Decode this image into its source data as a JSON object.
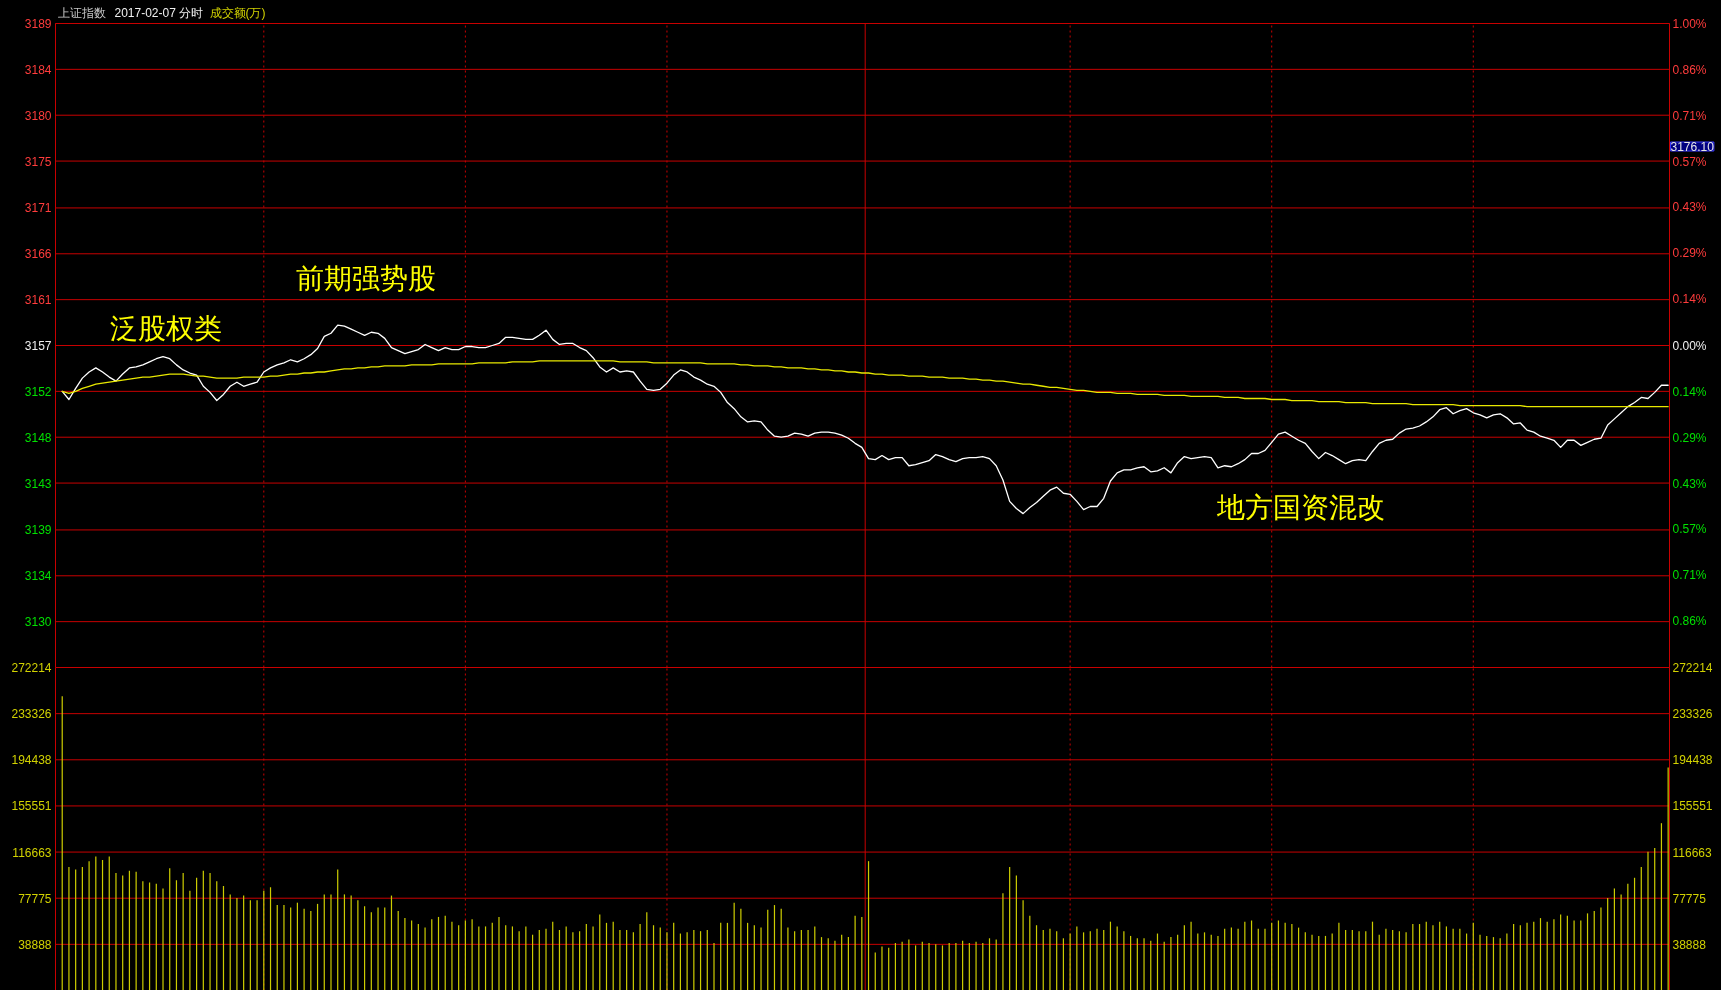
{
  "chart_data": [
    {
      "type": "line",
      "title": "上证指数",
      "subtitle": "2017-02-07 分时",
      "categories": [
        null,
        null,
        null,
        null,
        null,
        null,
        null,
        null,
        null,
        null,
        null,
        null,
        null,
        null,
        null,
        null,
        null,
        null,
        null,
        null,
        null,
        null,
        null,
        null,
        null,
        null,
        null,
        null,
        null,
        null,
        null,
        null,
        null,
        null,
        null,
        null,
        null,
        null,
        null,
        null,
        null,
        null,
        null,
        null,
        null,
        null,
        null,
        null,
        null,
        null,
        null,
        null,
        null,
        null,
        null,
        null,
        null,
        null,
        null,
        null,
        null,
        null,
        null,
        null,
        null,
        null,
        null,
        null,
        null,
        null,
        null,
        null,
        null,
        null,
        null,
        null,
        null,
        null,
        null,
        null,
        null,
        null,
        null,
        null,
        null,
        null,
        null,
        null,
        null,
        null,
        null,
        null,
        null,
        null,
        null,
        null,
        null,
        null,
        null,
        null,
        null,
        null,
        null,
        null,
        null,
        null,
        null,
        null,
        null,
        null,
        null,
        null,
        null,
        null,
        null,
        null,
        null,
        null,
        null,
        null,
        null,
        null,
        null,
        null,
        null,
        null,
        null,
        null,
        null,
        null,
        null,
        null,
        null,
        null,
        null,
        null,
        null,
        null,
        null,
        null,
        null,
        null,
        null,
        null,
        null,
        null,
        null,
        null,
        null,
        null,
        null,
        null,
        null,
        null,
        null,
        null,
        null,
        null,
        null,
        null,
        null,
        null,
        null,
        null,
        null,
        null,
        null,
        null,
        null,
        null,
        null,
        null,
        null,
        null,
        null,
        null,
        null,
        null,
        null,
        null,
        null,
        null,
        null,
        null,
        null,
        null,
        null,
        null,
        null,
        null,
        null,
        null,
        null,
        null,
        null,
        null,
        null,
        null,
        null,
        null,
        null,
        null,
        null,
        null,
        null,
        null,
        null,
        null,
        null,
        null,
        null,
        null,
        null,
        null,
        null,
        null,
        null,
        null,
        null,
        null,
        null,
        null,
        null,
        null,
        null,
        null,
        null,
        null,
        null,
        null,
        null,
        null,
        null,
        null,
        null,
        null,
        null,
        null,
        null,
        null
      ],
      "series": [
        {
          "color": "#ffffff",
          "values": [
            3152.5,
            3151.7,
            3152.8,
            3153.8,
            3154.4,
            3154.8,
            3154.4,
            3153.9,
            3153.5,
            3154.2,
            3154.8,
            3154.9,
            3155.1,
            3155.4,
            3155.7,
            3155.9,
            3155.7,
            3155.1,
            3154.6,
            3154.3,
            3154.1,
            3153.0,
            3152.4,
            3151.6,
            3152.2,
            3153.0,
            3153.4,
            3153.0,
            3153.2,
            3153.4,
            3154.4,
            3154.8,
            3155.1,
            3155.3,
            3155.6,
            3155.4,
            3155.7,
            3156.1,
            3156.7,
            3157.9,
            3158.2,
            3159.0,
            3158.9,
            3158.6,
            3158.3,
            3158.0,
            3158.3,
            3158.2,
            3157.7,
            3156.8,
            3156.5,
            3156.2,
            3156.4,
            3156.6,
            3157.1,
            3156.8,
            3156.5,
            3156.8,
            3156.6,
            3156.6,
            3156.9,
            3156.9,
            3156.8,
            3156.8,
            3157.0,
            3157.2,
            3157.8,
            3157.8,
            3157.7,
            3157.6,
            3157.6,
            3158.0,
            3158.5,
            3157.6,
            3157.1,
            3157.2,
            3157.2,
            3156.8,
            3156.5,
            3155.8,
            3154.9,
            3154.4,
            3154.8,
            3154.4,
            3154.5,
            3154.4,
            3153.5,
            3152.7,
            3152.6,
            3152.7,
            3153.3,
            3154.1,
            3154.6,
            3154.4,
            3153.9,
            3153.6,
            3153.2,
            3153.0,
            3152.4,
            3151.4,
            3150.8,
            3150.0,
            3149.5,
            3149.6,
            3149.5,
            3148.7,
            3148.1,
            3148.0,
            3148.1,
            3148.4,
            3148.3,
            3148.1,
            3148.4,
            3148.5,
            3148.5,
            3148.4,
            3148.2,
            3147.9,
            3147.4,
            3147.0,
            3145.9,
            3145.8,
            3146.2,
            3145.8,
            3146.0,
            3146.0,
            3145.2,
            3145.3,
            3145.5,
            3145.7,
            3146.3,
            3146.1,
            3145.8,
            3145.6,
            3145.9,
            3146.0,
            3146.0,
            3146.1,
            3145.9,
            3145.2,
            3143.8,
            3141.7,
            3141.0,
            3140.5,
            3141.1,
            3141.6,
            3142.2,
            3142.8,
            3143.1,
            3142.5,
            3142.4,
            3141.7,
            3140.9,
            3141.2,
            3141.2,
            3142.0,
            3143.7,
            3144.5,
            3144.8,
            3144.8,
            3145.0,
            3145.1,
            3144.6,
            3144.7,
            3145.0,
            3144.5,
            3145.5,
            3146.1,
            3145.9,
            3146.0,
            3146.1,
            3146.0,
            3145.0,
            3145.2,
            3145.1,
            3145.4,
            3145.8,
            3146.4,
            3146.4,
            3146.7,
            3147.5,
            3148.3,
            3148.5,
            3148.1,
            3147.7,
            3147.4,
            3146.6,
            3145.9,
            3146.5,
            3146.2,
            3145.8,
            3145.4,
            3145.7,
            3145.8,
            3145.7,
            3146.6,
            3147.4,
            3147.7,
            3147.8,
            3148.4,
            3148.8,
            3148.9,
            3149.1,
            3149.5,
            3150.0,
            3150.7,
            3150.9,
            3150.3,
            3150.6,
            3150.8,
            3150.4,
            3150.2,
            3149.9,
            3150.2,
            3150.3,
            3149.9,
            3149.3,
            3149.4,
            3148.7,
            3148.5,
            3148.1,
            3147.9,
            3147.7,
            3147.0,
            3147.7,
            3147.7,
            3147.2,
            3147.5,
            3147.8,
            3147.9,
            3149.2,
            3149.8,
            3150.4,
            3151.0,
            3151.4,
            3151.9,
            3151.8,
            3152.4,
            3153.1,
            3153.1
          ]
        },
        {
          "color": "#e8e800",
          "values": [
            3152.5,
            3152.3,
            3152.5,
            3152.8,
            3153.0,
            3153.2,
            3153.3,
            3153.4,
            3153.5,
            3153.6,
            3153.7,
            3153.8,
            3153.9,
            3153.9,
            3154.0,
            3154.1,
            3154.2,
            3154.2,
            3154.2,
            3154.1,
            3154.0,
            3154.0,
            3153.9,
            3153.8,
            3153.8,
            3153.8,
            3153.8,
            3153.9,
            3153.9,
            3153.9,
            3153.9,
            3154.0,
            3154.0,
            3154.1,
            3154.2,
            3154.2,
            3154.3,
            3154.3,
            3154.4,
            3154.4,
            3154.5,
            3154.6,
            3154.7,
            3154.7,
            3154.8,
            3154.8,
            3154.9,
            3154.9,
            3155.0,
            3155.0,
            3155.0,
            3155.0,
            3155.1,
            3155.1,
            3155.1,
            3155.1,
            3155.2,
            3155.2,
            3155.2,
            3155.2,
            3155.2,
            3155.2,
            3155.3,
            3155.3,
            3155.3,
            3155.3,
            3155.3,
            3155.4,
            3155.4,
            3155.4,
            3155.4,
            3155.5,
            3155.5,
            3155.5,
            3155.5,
            3155.5,
            3155.5,
            3155.5,
            3155.5,
            3155.5,
            3155.5,
            3155.5,
            3155.5,
            3155.4,
            3155.4,
            3155.4,
            3155.4,
            3155.4,
            3155.3,
            3155.3,
            3155.3,
            3155.3,
            3155.3,
            3155.3,
            3155.3,
            3155.3,
            3155.2,
            3155.2,
            3155.2,
            3155.2,
            3155.2,
            3155.1,
            3155.1,
            3155.0,
            3155.0,
            3155.0,
            3154.9,
            3154.9,
            3154.8,
            3154.8,
            3154.8,
            3154.7,
            3154.7,
            3154.6,
            3154.6,
            3154.5,
            3154.5,
            3154.4,
            3154.4,
            3154.3,
            3154.3,
            3154.2,
            3154.2,
            3154.1,
            3154.1,
            3154.1,
            3154.0,
            3154.0,
            3154.0,
            3153.9,
            3153.9,
            3153.9,
            3153.8,
            3153.8,
            3153.8,
            3153.7,
            3153.7,
            3153.6,
            3153.6,
            3153.5,
            3153.5,
            3153.4,
            3153.3,
            3153.2,
            3153.2,
            3153.1,
            3153.0,
            3152.9,
            3152.9,
            3152.8,
            3152.7,
            3152.6,
            3152.6,
            3152.5,
            3152.4,
            3152.4,
            3152.4,
            3152.3,
            3152.3,
            3152.3,
            3152.2,
            3152.2,
            3152.2,
            3152.2,
            3152.1,
            3152.1,
            3152.1,
            3152.1,
            3152.0,
            3152.0,
            3152.0,
            3152.0,
            3152.0,
            3151.9,
            3151.9,
            3151.9,
            3151.8,
            3151.8,
            3151.8,
            3151.8,
            3151.7,
            3151.7,
            3151.7,
            3151.6,
            3151.6,
            3151.6,
            3151.6,
            3151.5,
            3151.5,
            3151.5,
            3151.5,
            3151.4,
            3151.4,
            3151.4,
            3151.4,
            3151.3,
            3151.3,
            3151.3,
            3151.3,
            3151.3,
            3151.3,
            3151.2,
            3151.2,
            3151.2,
            3151.2,
            3151.2,
            3151.2,
            3151.2,
            3151.1,
            3151.1,
            3151.1,
            3151.1,
            3151.1,
            3151.1,
            3151.1,
            3151.1,
            3151.1,
            3151.1,
            3151.0,
            3151.0,
            3151.0,
            3151.0,
            3151.0,
            3151.0,
            3151.0,
            3151.0,
            3151.0,
            3151.0,
            3151.0,
            3151.0,
            3151.0,
            3151.0,
            3151.0,
            3151.0,
            3151.0,
            3151.0,
            3151.0,
            3151.0,
            3151.0,
            3151.0
          ]
        }
      ],
      "ylim": [
        3125.4,
        3188.6
      ],
      "yticks": [
        {
          "value": 3188.6,
          "label": "3189"
        },
        {
          "value": 3184.1,
          "label": "3184"
        },
        {
          "value": 3179.6,
          "label": "3180"
        },
        {
          "value": 3175.1,
          "label": "3175"
        },
        {
          "value": 3170.5,
          "label": "3171"
        },
        {
          "value": 3166.0,
          "label": "3166"
        },
        {
          "value": 3161.5,
          "label": "3161"
        },
        {
          "value": 3157.0,
          "label": "3157"
        },
        {
          "value": 3152.5,
          "label": "3152"
        },
        {
          "value": 3148.0,
          "label": "3148"
        },
        {
          "value": 3143.5,
          "label": "3143"
        },
        {
          "value": 3138.9,
          "label": "3139"
        },
        {
          "value": 3134.4,
          "label": "3134"
        },
        {
          "value": 3129.9,
          "label": "3130"
        }
      ],
      "y2lim": [
        -1.0,
        1.0
      ],
      "y2ticks": [
        {
          "value": 1.0,
          "label": "1.00%"
        },
        {
          "value": 0.857,
          "label": "0.86%"
        },
        {
          "value": 0.714,
          "label": "0.71%"
        },
        {
          "value": 0.571,
          "label": "0.57%"
        },
        {
          "value": 0.429,
          "label": "0.43%"
        },
        {
          "value": 0.286,
          "label": "0.29%"
        },
        {
          "value": 0.143,
          "label": "0.14%"
        },
        {
          "value": 0,
          "label": "0.00%"
        },
        {
          "value": -0.143,
          "label": "0.14%"
        },
        {
          "value": -0.286,
          "label": "0.29%"
        },
        {
          "value": -0.429,
          "label": "0.43%"
        },
        {
          "value": -0.571,
          "label": "0.57%"
        },
        {
          "value": -0.714,
          "label": "0.71%"
        },
        {
          "value": -0.857,
          "label": "0.86%"
        }
      ],
      "grid": true,
      "annotations": [
        "泛股权类",
        "前期强势股",
        "地方国资混改",
        "3176.10",
        "成交额(万)"
      ]
    },
    {
      "type": "bar",
      "categories": [
        null,
        null,
        null,
        null,
        null,
        null,
        null,
        null,
        null,
        null,
        null,
        null,
        null,
        null,
        null,
        null,
        null,
        null,
        null,
        null,
        null,
        null,
        null,
        null,
        null,
        null,
        null,
        null,
        null,
        null,
        null,
        null,
        null,
        null,
        null,
        null,
        null,
        null,
        null,
        null,
        null,
        null,
        null,
        null,
        null,
        null,
        null,
        null,
        null,
        null,
        null,
        null,
        null,
        null,
        null,
        null,
        null,
        null,
        null,
        null,
        null,
        null,
        null,
        null,
        null,
        null,
        null,
        null,
        null,
        null,
        null,
        null,
        null,
        null,
        null,
        null,
        null,
        null,
        null,
        null,
        null,
        null,
        null,
        null,
        null,
        null,
        null,
        null,
        null,
        null,
        null,
        null,
        null,
        null,
        null,
        null,
        null,
        null,
        null,
        null,
        null,
        null,
        null,
        null,
        null,
        null,
        null,
        null,
        null,
        null,
        null,
        null,
        null,
        null,
        null,
        null,
        null,
        null,
        null,
        null,
        null,
        null,
        null,
        null,
        null,
        null,
        null,
        null,
        null,
        null,
        null,
        null,
        null,
        null,
        null,
        null,
        null,
        null,
        null,
        null,
        null,
        null,
        null,
        null,
        null,
        null,
        null,
        null,
        null,
        null,
        null,
        null,
        null,
        null,
        null,
        null,
        null,
        null,
        null,
        null,
        null,
        null,
        null,
        null,
        null,
        null,
        null,
        null,
        null,
        null,
        null,
        null,
        null,
        null,
        null,
        null,
        null,
        null,
        null,
        null,
        null,
        null,
        null,
        null,
        null,
        null,
        null,
        null,
        null,
        null,
        null,
        null,
        null,
        null,
        null,
        null,
        null,
        null,
        null,
        null,
        null,
        null,
        null,
        null,
        null,
        null,
        null,
        null,
        null,
        null,
        null,
        null,
        null,
        null,
        null,
        null,
        null,
        null,
        null,
        null,
        null,
        null,
        null,
        null,
        null,
        null,
        null,
        null,
        null,
        null,
        null,
        null,
        null,
        null,
        null,
        null,
        null,
        null,
        null,
        null
      ],
      "values": [
        248000,
        104000,
        102000,
        104000,
        109000,
        113000,
        110000,
        113000,
        99000,
        97000,
        101000,
        100000,
        92000,
        91000,
        90000,
        86000,
        103000,
        93000,
        99000,
        84000,
        95000,
        101000,
        99000,
        92000,
        88000,
        81000,
        78000,
        80000,
        76000,
        76000,
        84000,
        87000,
        72000,
        72000,
        70000,
        74000,
        69000,
        67000,
        73000,
        81000,
        81000,
        102000,
        81000,
        80000,
        76000,
        71000,
        66000,
        70000,
        70000,
        80000,
        67000,
        61000,
        59000,
        56000,
        53000,
        60000,
        62000,
        63000,
        58000,
        55000,
        59000,
        60000,
        54000,
        54000,
        57000,
        62000,
        55000,
        54000,
        50000,
        54000,
        47000,
        51000,
        52000,
        58000,
        51000,
        54000,
        49000,
        50000,
        56000,
        54000,
        64000,
        57000,
        58000,
        51000,
        51000,
        49000,
        56000,
        66000,
        55000,
        53000,
        49000,
        57000,
        48000,
        49000,
        51000,
        50000,
        51000,
        40000,
        57000,
        57000,
        74000,
        69000,
        57000,
        55000,
        53000,
        68000,
        72000,
        69000,
        53000,
        50000,
        51000,
        51000,
        54000,
        45000,
        44000,
        42000,
        47000,
        45000,
        63000,
        62000,
        109000,
        32000,
        37000,
        36000,
        40000,
        41000,
        43000,
        38000,
        41000,
        40000,
        39000,
        38000,
        40000,
        40000,
        42000,
        40000,
        41000,
        40000,
        44000,
        43000,
        82000,
        104000,
        97000,
        76000,
        63000,
        55000,
        51000,
        52000,
        50000,
        44000,
        48000,
        54000,
        49000,
        50000,
        52000,
        51000,
        58000,
        54000,
        50000,
        46000,
        44000,
        44000,
        42000,
        48000,
        41000,
        45000,
        47000,
        55000,
        58000,
        48000,
        49000,
        47000,
        46000,
        52000,
        53000,
        52000,
        58000,
        59000,
        52000,
        52000,
        57000,
        59000,
        57000,
        56000,
        53000,
        49000,
        47000,
        46000,
        46000,
        48000,
        57000,
        51000,
        51000,
        50000,
        50000,
        58000,
        47000,
        52000,
        51000,
        50000,
        49000,
        56000,
        56000,
        58000,
        55000,
        58000,
        54000,
        52000,
        52000,
        48000,
        57000,
        47000,
        46000,
        45000,
        44000,
        48000,
        56000,
        55000,
        57000,
        58000,
        61000,
        58000,
        60000,
        64000,
        63000,
        59000,
        59000,
        65000,
        67000,
        70000,
        78000,
        86000,
        81000,
        90000,
        95000,
        104000,
        117000,
        120000,
        141000,
        188000
      ],
      "color": "#cccc00",
      "ylim": [
        0,
        272214
      ],
      "yticks": [
        38888,
        77775,
        116663,
        155551,
        194438,
        233326,
        272214
      ],
      "y2lim": [
        0,
        272214
      ],
      "y2ticks": [
        38888,
        77775,
        116663,
        155551,
        194438,
        233326,
        272214
      ],
      "grid": true
    }
  ]
}
